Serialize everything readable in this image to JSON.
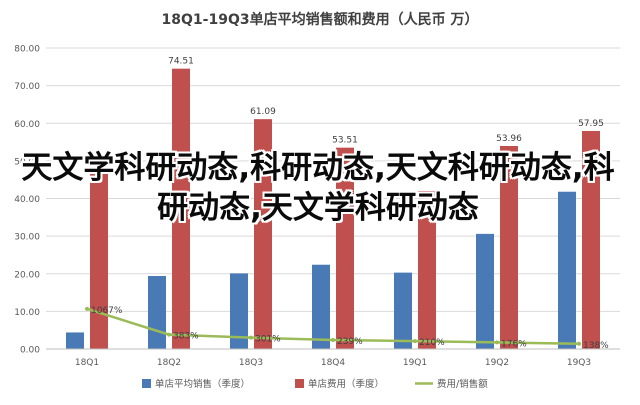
{
  "chart_data": {
    "type": "bar",
    "title": "18Q1-19Q3单店平均销售额和费用（人民币 万）",
    "categories": [
      "18Q1",
      "18Q2",
      "18Q3",
      "18Q4",
      "19Q1",
      "19Q2",
      "19Q3"
    ],
    "ylim": [
      0,
      80
    ],
    "yticks": [
      "0.00",
      "10.00",
      "20.00",
      "30.00",
      "40.00",
      "50.00",
      "60.00",
      "70.00",
      "80.00"
    ],
    "grid": true,
    "legend_position": "bottom",
    "series": [
      {
        "name": "单店平均销售（季度）",
        "type": "bar",
        "color": "#4a7ab5",
        "values": [
          4.4,
          19.4,
          20.1,
          22.4,
          20.3,
          30.6,
          41.8
        ]
      },
      {
        "name": "单店费用（季度）",
        "type": "bar",
        "color": "#c0504d",
        "values": [
          47.4,
          74.51,
          61.09,
          53.51,
          42.0,
          53.96,
          57.95
        ],
        "labels": [
          "",
          "74.51",
          "61.09",
          "53.51",
          "",
          "53.96",
          "57.95"
        ]
      },
      {
        "name": "费用/销售额",
        "type": "line",
        "color": "#9bbb59",
        "values": [
          10.67,
          3.83,
          3.01,
          2.39,
          2.1,
          1.76,
          1.38
        ],
        "labels": [
          "1067%",
          "383%",
          "301%",
          "239%",
          "210%",
          "176%",
          "138%"
        ]
      }
    ]
  },
  "overlay_text": "天文学科研动态,科研动态,天文科研动态,科研动态,天文学科研动态"
}
